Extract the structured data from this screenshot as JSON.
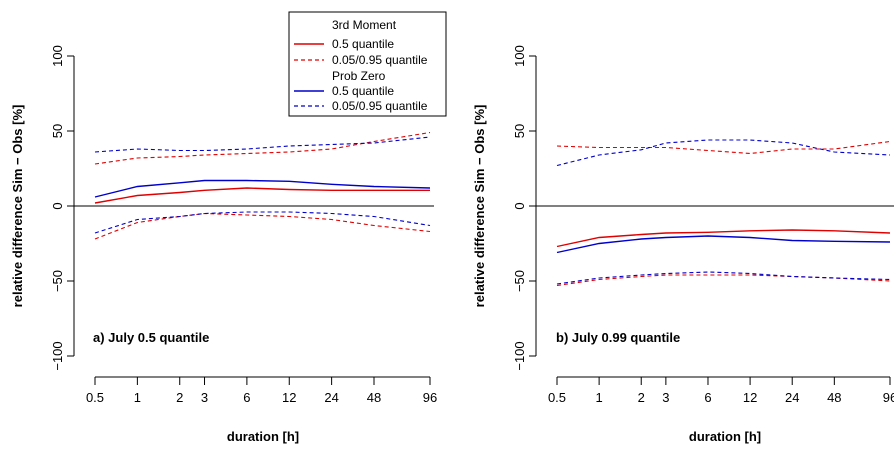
{
  "chart_data": [
    {
      "type": "line",
      "panel_label": "a) July 0.5 quantile",
      "xlabel": "duration [h]",
      "ylabel": "relative difference Sim − Obs [%]",
      "x_scale": "log",
      "x_ticks": [
        "0.5",
        "1",
        "2",
        "3",
        "6",
        "12",
        "24",
        "48",
        "96"
      ],
      "x": [
        0.5,
        1,
        2,
        3,
        6,
        12,
        24,
        48,
        120
      ],
      "ylim": [
        -100,
        100
      ],
      "y_ticks": [
        "−100",
        "−50",
        "0",
        "50",
        "100"
      ],
      "reference_line": 0,
      "legend": {
        "placement": "top-right",
        "groups": [
          {
            "title": "3rd Moment",
            "color": "#e00000",
            "entries": [
              {
                "label": "0.5 quantile",
                "style": "solid"
              },
              {
                "label": "0.05/0.95 quantile",
                "style": "dashed"
              }
            ]
          },
          {
            "title": "Prob Zero",
            "color": "#0000cc",
            "entries": [
              {
                "label": "0.5 quantile",
                "style": "solid"
              },
              {
                "label": "0.05/0.95 quantile",
                "style": "dashed"
              }
            ]
          }
        ]
      },
      "series": [
        {
          "group": "3rd Moment",
          "quantile": "0.5",
          "color": "#e00000",
          "style": "solid",
          "values": [
            2,
            7,
            9,
            10.5,
            12,
            11,
            10.5,
            10.5,
            10.5
          ]
        },
        {
          "group": "3rd Moment",
          "quantile": "0.95",
          "color": "#e00000",
          "style": "dashed",
          "values": [
            28,
            32,
            33,
            34,
            35,
            36,
            38,
            43,
            49
          ]
        },
        {
          "group": "3rd Moment",
          "quantile": "0.05",
          "color": "#e00000",
          "style": "dashed",
          "values": [
            -22,
            -11,
            -7,
            -5,
            -6,
            -7,
            -9,
            -13,
            -17
          ]
        },
        {
          "group": "Prob Zero",
          "quantile": "0.5",
          "color": "#0000cc",
          "style": "solid",
          "values": [
            6,
            13,
            15.5,
            17,
            17,
            16.5,
            14.5,
            13,
            12
          ]
        },
        {
          "group": "Prob Zero",
          "quantile": "0.95",
          "color": "#0000cc",
          "style": "dashed",
          "values": [
            36,
            38,
            37,
            37,
            38,
            40,
            41,
            42,
            46
          ]
        },
        {
          "group": "Prob Zero",
          "quantile": "0.05",
          "color": "#0000cc",
          "style": "dashed",
          "values": [
            -18,
            -9,
            -7,
            -5,
            -4,
            -4,
            -5,
            -7,
            -13
          ]
        }
      ]
    },
    {
      "type": "line",
      "panel_label": "b) July 0.99 quantile",
      "xlabel": "duration [h]",
      "ylabel": "relative difference Sim − Obs [%]",
      "x_scale": "log",
      "x_ticks": [
        "0.5",
        "1",
        "2",
        "3",
        "6",
        "12",
        "24",
        "48",
        "96"
      ],
      "x": [
        0.5,
        1,
        2,
        3,
        6,
        12,
        24,
        48,
        120
      ],
      "ylim": [
        -100,
        100
      ],
      "y_ticks": [
        "−100",
        "−50",
        "0",
        "50",
        "100"
      ],
      "reference_line": 0,
      "series": [
        {
          "group": "3rd Moment",
          "quantile": "0.5",
          "color": "#e00000",
          "style": "solid",
          "values": [
            -27,
            -21,
            -19,
            -18,
            -17.5,
            -16.5,
            -16,
            -16.5,
            -18
          ]
        },
        {
          "group": "3rd Moment",
          "quantile": "0.95",
          "color": "#e00000",
          "style": "dashed",
          "values": [
            40,
            39,
            39,
            39,
            37,
            35,
            38,
            38,
            43
          ]
        },
        {
          "group": "3rd Moment",
          "quantile": "0.05",
          "color": "#e00000",
          "style": "dashed",
          "values": [
            -53,
            -49,
            -47,
            -46,
            -46,
            -46,
            -47,
            -48,
            -50
          ]
        },
        {
          "group": "Prob Zero",
          "quantile": "0.5",
          "color": "#0000cc",
          "style": "solid",
          "values": [
            -31,
            -25,
            -22,
            -21,
            -20,
            -21,
            -23,
            -23.5,
            -24
          ]
        },
        {
          "group": "Prob Zero",
          "quantile": "0.95",
          "color": "#0000cc",
          "style": "dashed",
          "values": [
            27,
            34,
            37.5,
            42,
            44,
            44,
            42,
            36,
            34
          ]
        },
        {
          "group": "Prob Zero",
          "quantile": "0.05",
          "color": "#0000cc",
          "style": "dashed",
          "values": [
            -52,
            -48,
            -46,
            -45,
            -44,
            -45,
            -47,
            -48,
            -49
          ]
        }
      ]
    }
  ]
}
